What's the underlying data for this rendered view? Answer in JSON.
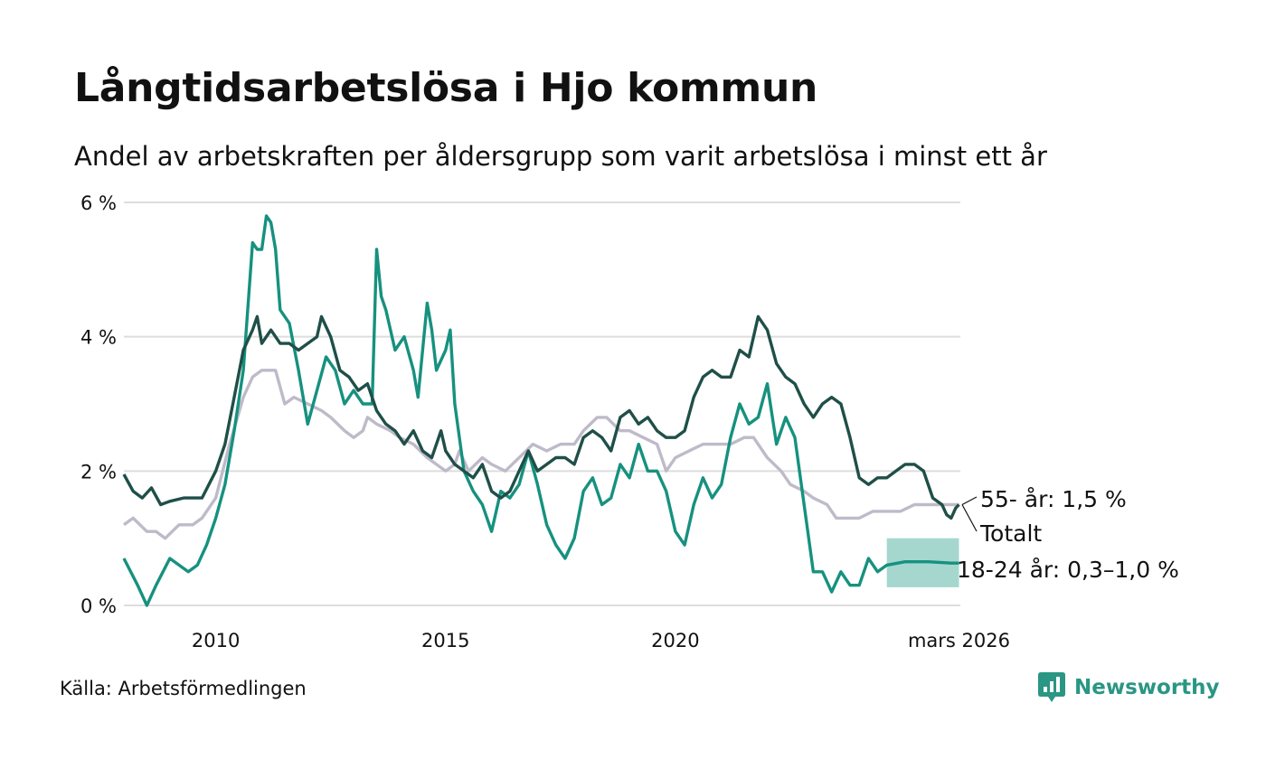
{
  "header": {
    "title": "Långtidsarbetslösa i Hjo kommun",
    "subtitle": "Andel av arbetskraften per åldersgrupp som varit arbetslösa i minst ett år"
  },
  "footer": {
    "source": "Källa: Arbetsförmedlingen",
    "brand": "Newsworthy"
  },
  "colors": {
    "total": "#1f4f48",
    "age18_24": "#16917f",
    "age55": "#bfbac9",
    "forecast_band": "#a5d7cf",
    "grid": "#dddddd",
    "brand": "#2a9683"
  },
  "chart_data": {
    "type": "line",
    "title": "Långtidsarbetslösa i Hjo kommun",
    "xlabel": "",
    "ylabel": "",
    "xlim": [
      2008.0,
      2026.2
    ],
    "ylim": [
      0,
      6
    ],
    "y_ticks": [
      0,
      2,
      4,
      6
    ],
    "y_tick_labels": [
      "0 %",
      "2 %",
      "4 %",
      "6 %"
    ],
    "x_ticks": [
      2010,
      2015,
      2020,
      2026.17
    ],
    "x_tick_labels": [
      "2010",
      "2015",
      "2020",
      "mars 2026"
    ],
    "grid": true,
    "series": [
      {
        "name": "55- år",
        "end_label": "55- år: 1,5 %",
        "color_key": "age55",
        "points": [
          [
            2008.0,
            1.2
          ],
          [
            2008.2,
            1.3
          ],
          [
            2008.5,
            1.1
          ],
          [
            2008.7,
            1.1
          ],
          [
            2008.9,
            1.0
          ],
          [
            2009.2,
            1.2
          ],
          [
            2009.5,
            1.2
          ],
          [
            2009.7,
            1.3
          ],
          [
            2010.0,
            1.6
          ],
          [
            2010.3,
            2.4
          ],
          [
            2010.6,
            3.1
          ],
          [
            2010.8,
            3.4
          ],
          [
            2011.0,
            3.5
          ],
          [
            2011.3,
            3.5
          ],
          [
            2011.5,
            3.0
          ],
          [
            2011.7,
            3.1
          ],
          [
            2012.0,
            3.0
          ],
          [
            2012.3,
            2.9
          ],
          [
            2012.5,
            2.8
          ],
          [
            2012.8,
            2.6
          ],
          [
            2013.0,
            2.5
          ],
          [
            2013.2,
            2.6
          ],
          [
            2013.3,
            2.8
          ],
          [
            2013.5,
            2.7
          ],
          [
            2013.8,
            2.6
          ],
          [
            2014.0,
            2.5
          ],
          [
            2014.3,
            2.4
          ],
          [
            2014.6,
            2.2
          ],
          [
            2015.0,
            2.0
          ],
          [
            2015.2,
            2.1
          ],
          [
            2015.3,
            2.3
          ],
          [
            2015.5,
            2.0
          ],
          [
            2015.8,
            2.2
          ],
          [
            2016.0,
            2.1
          ],
          [
            2016.3,
            2.0
          ],
          [
            2016.6,
            2.2
          ],
          [
            2016.9,
            2.4
          ],
          [
            2017.2,
            2.3
          ],
          [
            2017.5,
            2.4
          ],
          [
            2017.8,
            2.4
          ],
          [
            2018.0,
            2.6
          ],
          [
            2018.3,
            2.8
          ],
          [
            2018.5,
            2.8
          ],
          [
            2018.8,
            2.6
          ],
          [
            2019.0,
            2.6
          ],
          [
            2019.3,
            2.5
          ],
          [
            2019.6,
            2.4
          ],
          [
            2019.8,
            2.0
          ],
          [
            2020.0,
            2.2
          ],
          [
            2020.3,
            2.3
          ],
          [
            2020.6,
            2.4
          ],
          [
            2020.8,
            2.4
          ],
          [
            2021.0,
            2.4
          ],
          [
            2021.2,
            2.4
          ],
          [
            2021.5,
            2.5
          ],
          [
            2021.7,
            2.5
          ],
          [
            2022.0,
            2.2
          ],
          [
            2022.3,
            2.0
          ],
          [
            2022.5,
            1.8
          ],
          [
            2022.8,
            1.7
          ],
          [
            2023.0,
            1.6
          ],
          [
            2023.3,
            1.5
          ],
          [
            2023.5,
            1.3
          ],
          [
            2023.8,
            1.3
          ],
          [
            2024.0,
            1.3
          ],
          [
            2024.3,
            1.4
          ],
          [
            2024.6,
            1.4
          ],
          [
            2024.9,
            1.4
          ],
          [
            2025.2,
            1.5
          ],
          [
            2025.5,
            1.5
          ],
          [
            2025.8,
            1.5
          ],
          [
            2026.0,
            1.5
          ],
          [
            2026.17,
            1.5
          ]
        ]
      },
      {
        "name": "18-24 år",
        "end_label": "18-24 år: 0,3–1,0 %",
        "color_key": "age18_24",
        "points": [
          [
            2008.0,
            0.7
          ],
          [
            2008.3,
            0.3
          ],
          [
            2008.5,
            0.0
          ],
          [
            2008.7,
            0.3
          ],
          [
            2009.0,
            0.7
          ],
          [
            2009.2,
            0.6
          ],
          [
            2009.4,
            0.5
          ],
          [
            2009.6,
            0.6
          ],
          [
            2009.8,
            0.9
          ],
          [
            2010.0,
            1.3
          ],
          [
            2010.2,
            1.8
          ],
          [
            2010.4,
            2.6
          ],
          [
            2010.6,
            3.5
          ],
          [
            2010.8,
            5.4
          ],
          [
            2010.9,
            5.3
          ],
          [
            2011.0,
            5.3
          ],
          [
            2011.1,
            5.8
          ],
          [
            2011.2,
            5.7
          ],
          [
            2011.3,
            5.3
          ],
          [
            2011.4,
            4.4
          ],
          [
            2011.6,
            4.2
          ],
          [
            2011.8,
            3.5
          ],
          [
            2012.0,
            2.7
          ],
          [
            2012.2,
            3.2
          ],
          [
            2012.4,
            3.7
          ],
          [
            2012.6,
            3.5
          ],
          [
            2012.8,
            3.0
          ],
          [
            2013.0,
            3.2
          ],
          [
            2013.2,
            3.0
          ],
          [
            2013.4,
            3.0
          ],
          [
            2013.5,
            5.3
          ],
          [
            2013.6,
            4.6
          ],
          [
            2013.7,
            4.4
          ],
          [
            2013.9,
            3.8
          ],
          [
            2014.1,
            4.0
          ],
          [
            2014.3,
            3.5
          ],
          [
            2014.4,
            3.1
          ],
          [
            2014.6,
            4.5
          ],
          [
            2014.7,
            4.1
          ],
          [
            2014.8,
            3.5
          ],
          [
            2015.0,
            3.8
          ],
          [
            2015.1,
            4.1
          ],
          [
            2015.2,
            3.0
          ],
          [
            2015.4,
            2.0
          ],
          [
            2015.6,
            1.7
          ],
          [
            2015.8,
            1.5
          ],
          [
            2016.0,
            1.1
          ],
          [
            2016.2,
            1.7
          ],
          [
            2016.4,
            1.6
          ],
          [
            2016.6,
            1.8
          ],
          [
            2016.8,
            2.3
          ],
          [
            2017.0,
            1.8
          ],
          [
            2017.2,
            1.2
          ],
          [
            2017.4,
            0.9
          ],
          [
            2017.6,
            0.7
          ],
          [
            2017.8,
            1.0
          ],
          [
            2018.0,
            1.7
          ],
          [
            2018.2,
            1.9
          ],
          [
            2018.4,
            1.5
          ],
          [
            2018.6,
            1.6
          ],
          [
            2018.8,
            2.1
          ],
          [
            2019.0,
            1.9
          ],
          [
            2019.2,
            2.4
          ],
          [
            2019.4,
            2.0
          ],
          [
            2019.6,
            2.0
          ],
          [
            2019.8,
            1.7
          ],
          [
            2020.0,
            1.1
          ],
          [
            2020.2,
            0.9
          ],
          [
            2020.4,
            1.5
          ],
          [
            2020.6,
            1.9
          ],
          [
            2020.8,
            1.6
          ],
          [
            2021.0,
            1.8
          ],
          [
            2021.2,
            2.5
          ],
          [
            2021.4,
            3.0
          ],
          [
            2021.6,
            2.7
          ],
          [
            2021.8,
            2.8
          ],
          [
            2022.0,
            3.3
          ],
          [
            2022.2,
            2.4
          ],
          [
            2022.4,
            2.8
          ],
          [
            2022.6,
            2.5
          ],
          [
            2022.8,
            1.5
          ],
          [
            2023.0,
            0.5
          ],
          [
            2023.2,
            0.5
          ],
          [
            2023.4,
            0.2
          ],
          [
            2023.6,
            0.5
          ],
          [
            2023.8,
            0.3
          ],
          [
            2024.0,
            0.3
          ],
          [
            2024.2,
            0.7
          ],
          [
            2024.4,
            0.5
          ],
          [
            2024.6,
            0.6
          ],
          [
            2025.0,
            0.65
          ],
          [
            2025.5,
            0.65
          ],
          [
            2026.0,
            0.63
          ],
          [
            2026.17,
            0.63
          ]
        ],
        "forecast": {
          "x_start": 2024.6,
          "x_end": 2026.17,
          "low": 0.27,
          "high": 1.0
        }
      },
      {
        "name": "Totalt",
        "end_label": "Totalt",
        "color_key": "total",
        "points": [
          [
            2008.0,
            1.95
          ],
          [
            2008.2,
            1.7
          ],
          [
            2008.4,
            1.6
          ],
          [
            2008.6,
            1.75
          ],
          [
            2008.8,
            1.5
          ],
          [
            2009.0,
            1.55
          ],
          [
            2009.3,
            1.6
          ],
          [
            2009.7,
            1.6
          ],
          [
            2010.0,
            2.0
          ],
          [
            2010.2,
            2.4
          ],
          [
            2010.4,
            3.1
          ],
          [
            2010.6,
            3.8
          ],
          [
            2010.8,
            4.1
          ],
          [
            2010.9,
            4.3
          ],
          [
            2011.0,
            3.9
          ],
          [
            2011.2,
            4.1
          ],
          [
            2011.4,
            3.9
          ],
          [
            2011.6,
            3.9
          ],
          [
            2011.8,
            3.8
          ],
          [
            2012.0,
            3.9
          ],
          [
            2012.2,
            4.0
          ],
          [
            2012.3,
            4.3
          ],
          [
            2012.5,
            4.0
          ],
          [
            2012.7,
            3.5
          ],
          [
            2012.9,
            3.4
          ],
          [
            2013.1,
            3.2
          ],
          [
            2013.3,
            3.3
          ],
          [
            2013.5,
            2.9
          ],
          [
            2013.7,
            2.7
          ],
          [
            2013.9,
            2.6
          ],
          [
            2014.1,
            2.4
          ],
          [
            2014.3,
            2.6
          ],
          [
            2014.5,
            2.3
          ],
          [
            2014.7,
            2.2
          ],
          [
            2014.9,
            2.6
          ],
          [
            2015.0,
            2.3
          ],
          [
            2015.2,
            2.1
          ],
          [
            2015.4,
            2.0
          ],
          [
            2015.6,
            1.9
          ],
          [
            2015.8,
            2.1
          ],
          [
            2016.0,
            1.7
          ],
          [
            2016.2,
            1.6
          ],
          [
            2016.4,
            1.7
          ],
          [
            2016.6,
            2.0
          ],
          [
            2016.8,
            2.3
          ],
          [
            2017.0,
            2.0
          ],
          [
            2017.2,
            2.1
          ],
          [
            2017.4,
            2.2
          ],
          [
            2017.6,
            2.2
          ],
          [
            2017.8,
            2.1
          ],
          [
            2018.0,
            2.5
          ],
          [
            2018.2,
            2.6
          ],
          [
            2018.4,
            2.5
          ],
          [
            2018.6,
            2.3
          ],
          [
            2018.8,
            2.8
          ],
          [
            2019.0,
            2.9
          ],
          [
            2019.2,
            2.7
          ],
          [
            2019.4,
            2.8
          ],
          [
            2019.6,
            2.6
          ],
          [
            2019.8,
            2.5
          ],
          [
            2020.0,
            2.5
          ],
          [
            2020.2,
            2.6
          ],
          [
            2020.4,
            3.1
          ],
          [
            2020.6,
            3.4
          ],
          [
            2020.8,
            3.5
          ],
          [
            2021.0,
            3.4
          ],
          [
            2021.2,
            3.4
          ],
          [
            2021.4,
            3.8
          ],
          [
            2021.6,
            3.7
          ],
          [
            2021.7,
            4.0
          ],
          [
            2021.8,
            4.3
          ],
          [
            2022.0,
            4.1
          ],
          [
            2022.2,
            3.6
          ],
          [
            2022.4,
            3.4
          ],
          [
            2022.6,
            3.3
          ],
          [
            2022.8,
            3.0
          ],
          [
            2023.0,
            2.8
          ],
          [
            2023.2,
            3.0
          ],
          [
            2023.4,
            3.1
          ],
          [
            2023.6,
            3.0
          ],
          [
            2023.8,
            2.5
          ],
          [
            2024.0,
            1.9
          ],
          [
            2024.2,
            1.8
          ],
          [
            2024.4,
            1.9
          ],
          [
            2024.6,
            1.9
          ],
          [
            2024.8,
            2.0
          ],
          [
            2025.0,
            2.1
          ],
          [
            2025.2,
            2.1
          ],
          [
            2025.4,
            2.0
          ],
          [
            2025.6,
            1.6
          ],
          [
            2025.8,
            1.5
          ],
          [
            2025.9,
            1.35
          ],
          [
            2026.0,
            1.3
          ],
          [
            2026.1,
            1.45
          ],
          [
            2026.17,
            1.5
          ]
        ]
      }
    ]
  }
}
